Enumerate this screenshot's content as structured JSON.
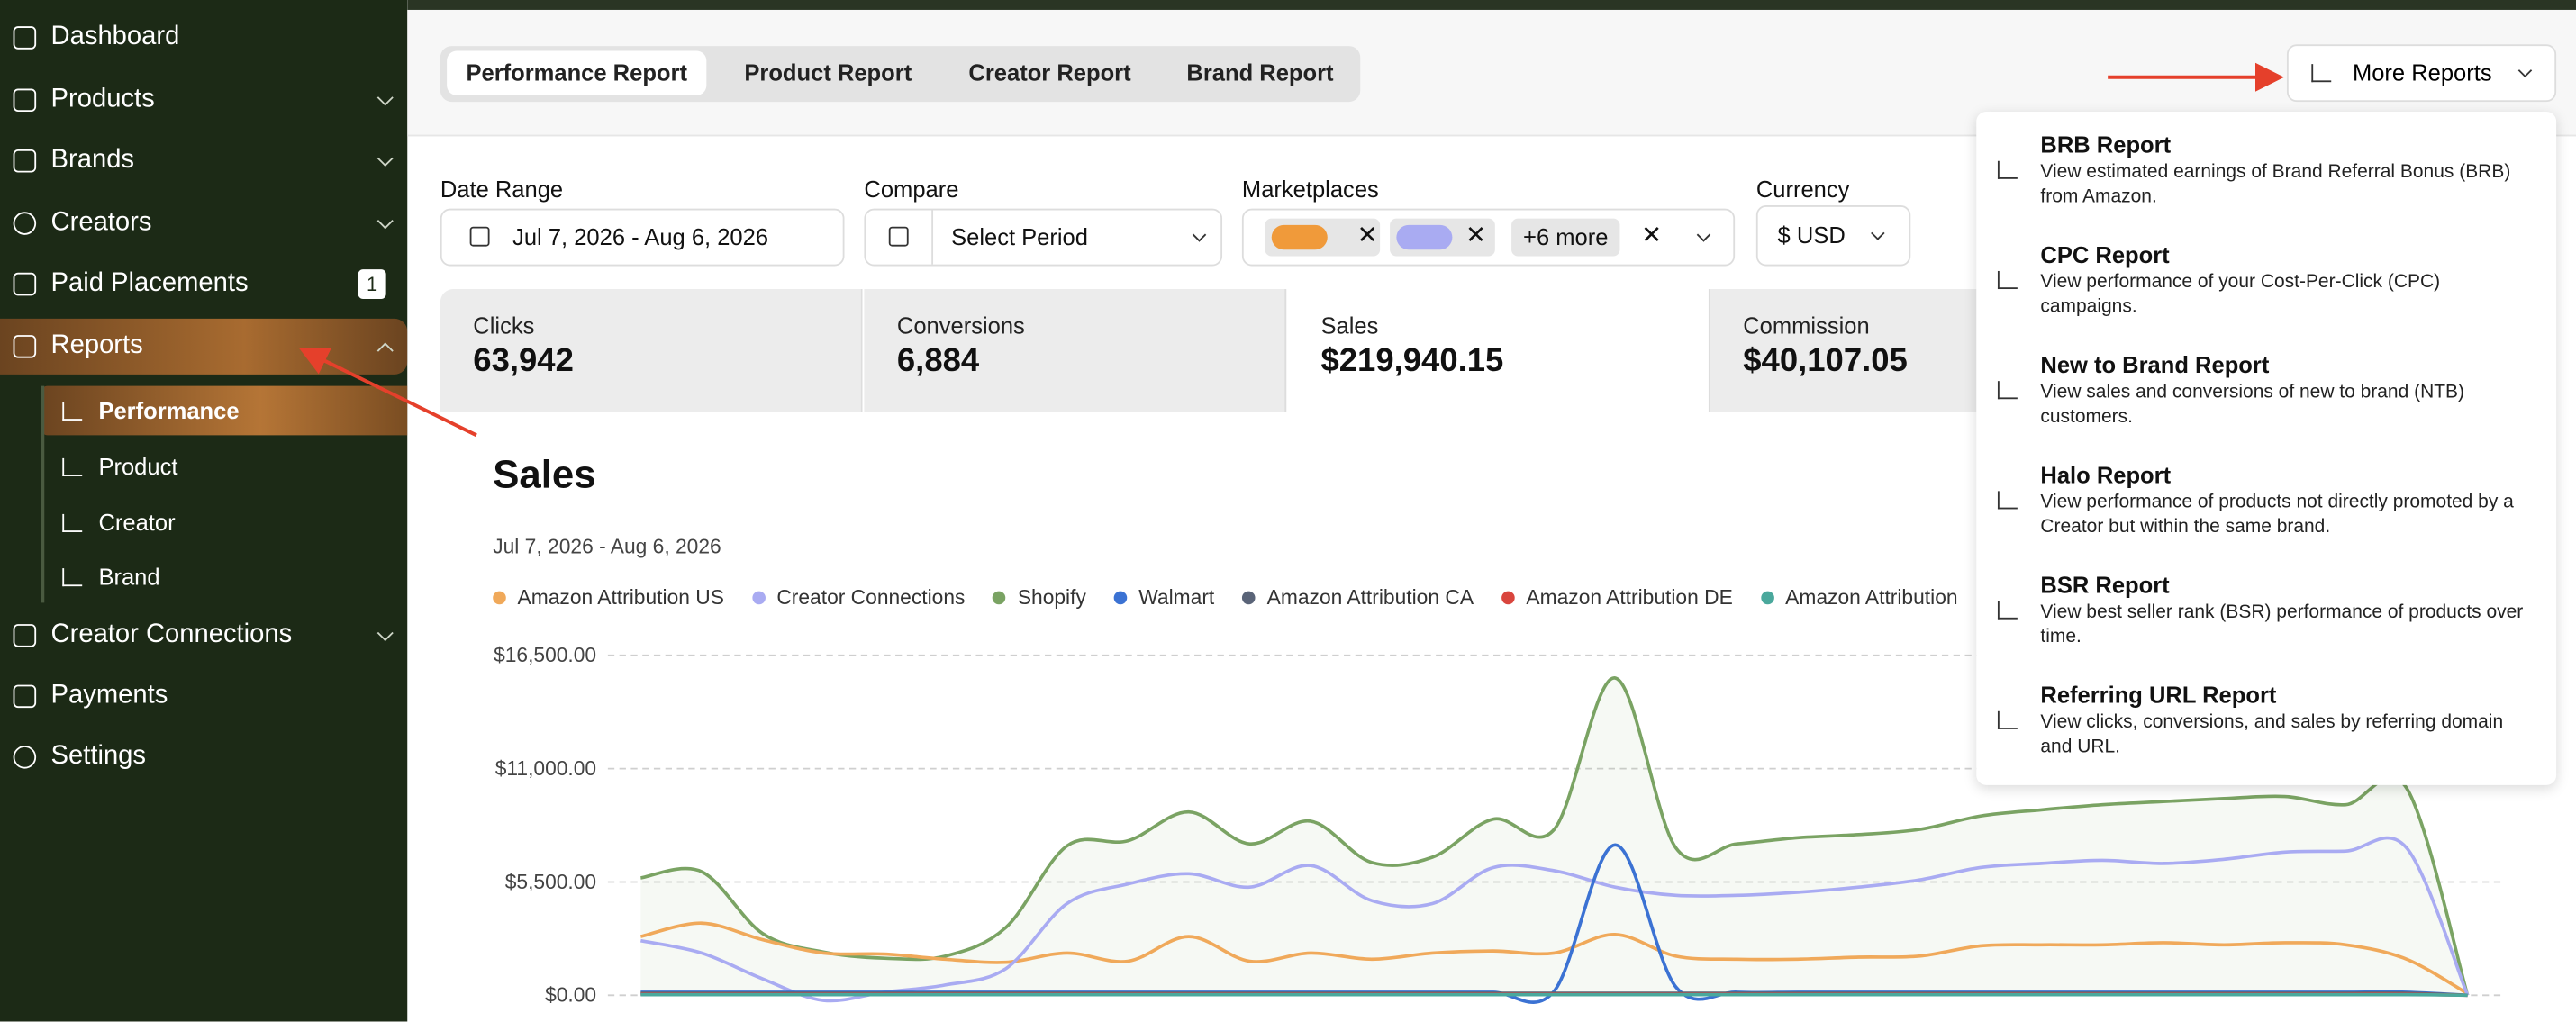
{
  "sidebar": {
    "items": [
      "Dashboard",
      "Products",
      "Brands",
      "Creators",
      "Paid Placements",
      "Reports",
      "Creator Connections",
      "Payments",
      "Settings"
    ],
    "badge": "1",
    "report_children": [
      "Performance",
      "Product",
      "Creator",
      "Brand"
    ]
  },
  "tabs": [
    "Performance Report",
    "Product Report",
    "Creator Report",
    "Brand Report"
  ],
  "more_reports": "More Reports",
  "filters": {
    "date_range": {
      "label": "Date Range",
      "value": "Jul 7, 2026 - Aug 6, 2026"
    },
    "compare": {
      "label": "Compare",
      "value": "Select Period"
    },
    "marketplaces": {
      "label": "Marketplaces",
      "more": "+6 more"
    },
    "currency": {
      "label": "Currency",
      "value": "$ USD"
    }
  },
  "metrics": [
    {
      "label": "Clicks",
      "value": "63,942"
    },
    {
      "label": "Conversions",
      "value": "6,884"
    },
    {
      "label": "Sales",
      "value": "$219,940.15"
    },
    {
      "label": "Commission",
      "value": "$40,107.05"
    }
  ],
  "menu": [
    {
      "title": "BRB Report",
      "desc": "View estimated earnings of Brand Referral Bonus (BRB) from Amazon."
    },
    {
      "title": "CPC Report",
      "desc": "View performance of your Cost-Per-Click (CPC) campaigns."
    },
    {
      "title": "New to Brand Report",
      "desc": "View sales and conversions of new to brand (NTB) customers."
    },
    {
      "title": "Halo Report",
      "desc": "View performance of products not directly promoted by a Creator but within the same brand."
    },
    {
      "title": "BSR Report",
      "desc": "View best seller rank (BSR) performance of products over time."
    },
    {
      "title": "Referring URL Report",
      "desc": "View clicks, conversions, and sales by referring domain and URL."
    }
  ],
  "chart_data": {
    "type": "line",
    "title": "Sales",
    "subtitle": "Jul 7, 2026 - Aug 6, 2026",
    "ylim": [
      0,
      16500
    ],
    "yticks": [
      {
        "value": 0,
        "label": "$0.00"
      },
      {
        "value": 5500,
        "label": "$5,500.00"
      },
      {
        "value": 11000,
        "label": "$11,000.00"
      },
      {
        "value": 16500,
        "label": "$16,500.00"
      }
    ],
    "grid": true,
    "series": [
      {
        "name": "Amazon Attribution US",
        "color": "#f0a95a",
        "values": [
          2850,
          3500,
          2700,
          2050,
          2000,
          1750,
          1600,
          2050,
          1650,
          2850,
          1650,
          2050,
          1750,
          2050,
          2150,
          2050,
          2950,
          1900,
          1750,
          1750,
          1850,
          1900,
          2400,
          2450,
          2450,
          2550,
          2450,
          2550,
          2450,
          1750,
          80
        ]
      },
      {
        "name": "Creator Connections",
        "color": "#a9abf2",
        "values": [
          2650,
          2050,
          800,
          -250,
          150,
          500,
          1300,
          4450,
          5400,
          5900,
          5250,
          6300,
          4600,
          4450,
          6200,
          6050,
          5250,
          4850,
          4850,
          5000,
          5250,
          5600,
          6200,
          6400,
          6550,
          6400,
          6600,
          6950,
          7000,
          7150,
          0
        ]
      },
      {
        "name": "Shopify",
        "color": "#7aa363",
        "values": [
          5700,
          6000,
          3000,
          2100,
          1800,
          1900,
          3300,
          7250,
          7500,
          8900,
          7350,
          8450,
          6450,
          6700,
          8550,
          8050,
          15400,
          7150,
          7350,
          7650,
          7800,
          8050,
          8700,
          9000,
          9250,
          9400,
          9550,
          9650,
          9250,
          10050,
          0
        ]
      },
      {
        "name": "Walmart",
        "color": "#3b72d3",
        "values": [
          150,
          150,
          150,
          150,
          150,
          150,
          150,
          150,
          150,
          150,
          150,
          150,
          150,
          150,
          150,
          200,
          7300,
          400,
          150,
          150,
          150,
          150,
          150,
          150,
          150,
          150,
          150,
          150,
          150,
          150,
          0
        ]
      },
      {
        "name": "Amazon Attribution CA",
        "color": "#5a6478",
        "values": [
          100,
          100,
          100,
          100,
          100,
          100,
          100,
          100,
          100,
          100,
          100,
          100,
          100,
          100,
          100,
          100,
          100,
          100,
          100,
          100,
          100,
          100,
          100,
          100,
          100,
          100,
          100,
          100,
          100,
          100,
          0
        ]
      },
      {
        "name": "Amazon Attribution DE",
        "color": "#d9453d",
        "values": [
          50,
          50,
          50,
          50,
          50,
          50,
          50,
          50,
          50,
          50,
          50,
          50,
          50,
          50,
          50,
          50,
          50,
          50,
          50,
          50,
          50,
          50,
          50,
          50,
          50,
          50,
          50,
          50,
          50,
          50,
          0
        ]
      },
      {
        "name": "Amazon Attribution",
        "color": "#4aa89c",
        "values": [
          30,
          30,
          30,
          30,
          30,
          30,
          30,
          30,
          30,
          30,
          30,
          30,
          30,
          30,
          30,
          30,
          30,
          30,
          30,
          30,
          30,
          30,
          30,
          30,
          30,
          30,
          30,
          30,
          30,
          30,
          0
        ]
      }
    ]
  }
}
